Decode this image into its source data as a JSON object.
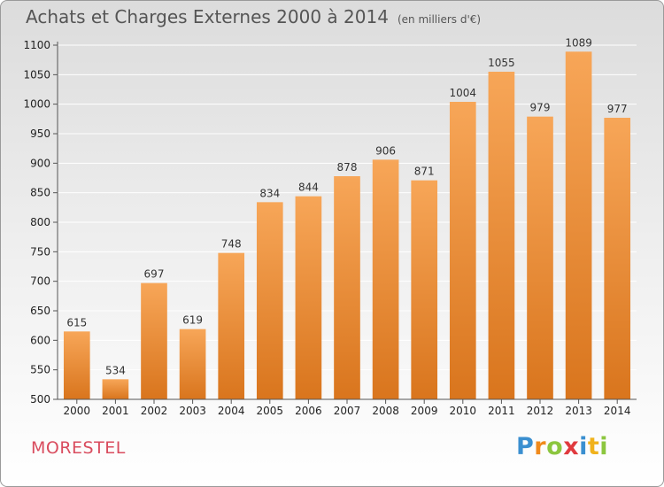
{
  "title": "Achats et Charges Externes 2000 à 2014",
  "subtitle": "(en milliers d'€)",
  "commune": "MORESTEL",
  "logo": {
    "letters": [
      {
        "char": "P",
        "color": "#3a8fd0"
      },
      {
        "char": "r",
        "color": "#f08a1c"
      },
      {
        "char": "o",
        "color": "#8cc63f"
      },
      {
        "char": "x",
        "color": "#e03a3e"
      },
      {
        "char": "i",
        "color": "#3a8fd0"
      },
      {
        "char": "t",
        "color": "#f0b21c"
      },
      {
        "char": "i",
        "color": "#8cc63f"
      }
    ]
  },
  "chart_data": {
    "type": "bar",
    "title": "Achats et Charges Externes 2000 à 2014",
    "xlabel": "",
    "ylabel": "",
    "categories": [
      "2000",
      "2001",
      "2002",
      "2003",
      "2004",
      "2005",
      "2006",
      "2007",
      "2008",
      "2009",
      "2010",
      "2011",
      "2012",
      "2013",
      "2014"
    ],
    "values": [
      615,
      534,
      697,
      619,
      748,
      834,
      844,
      878,
      906,
      871,
      1004,
      1055,
      979,
      1089,
      977
    ],
    "ylim": [
      500,
      1100
    ],
    "yticks": [
      500,
      550,
      600,
      650,
      700,
      750,
      800,
      850,
      900,
      950,
      1000,
      1050,
      1100
    ],
    "grid": true,
    "bar_color_top": "#f7a658",
    "bar_color_bottom": "#d9751d",
    "grid_color": "#ffffff"
  }
}
